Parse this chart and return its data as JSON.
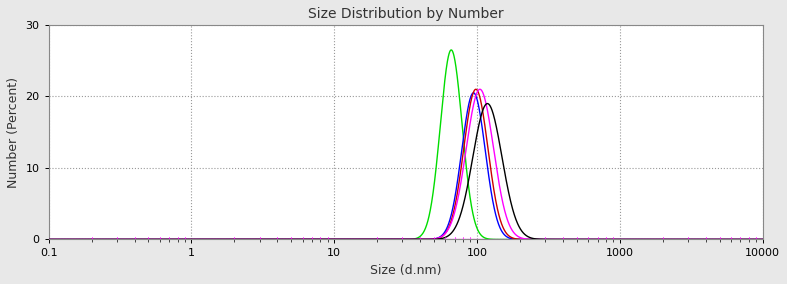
{
  "title": "Size Distribution by Number",
  "xlabel": "Size (d.nm)",
  "ylabel": "Number (Percent)",
  "xlim": [
    0.1,
    10000
  ],
  "ylim": [
    0,
    30
  ],
  "yticks": [
    0,
    10,
    20,
    30
  ],
  "background_color": "#e8e8e8",
  "plot_bg_color": "#ffffff",
  "curves": [
    {
      "color": "#00dd00",
      "peak": 68.06,
      "peak_val": 26.5,
      "sigma_log": 0.175
    },
    {
      "color": "#0000ff",
      "peak": 98.0,
      "peak_val": 20.5,
      "sigma_log": 0.19
    },
    {
      "color": "#cc0000",
      "peak": 102.0,
      "peak_val": 21.0,
      "sigma_log": 0.195
    },
    {
      "color": "#ff00ff",
      "peak": 110.0,
      "peak_val": 21.0,
      "sigma_log": 0.22
    },
    {
      "color": "#000000",
      "peak": 125.0,
      "peak_val": 19.0,
      "sigma_log": 0.235
    }
  ],
  "baseline_color": "#ff00ff",
  "grid_color": "#999999",
  "title_fontsize": 10,
  "label_fontsize": 9,
  "tick_fontsize": 8,
  "x_tick_labels": [
    "0.1",
    "1",
    "10",
    "100",
    "1000",
    "10000"
  ],
  "x_tick_values": [
    0.1,
    1,
    10,
    100,
    1000,
    10000
  ]
}
